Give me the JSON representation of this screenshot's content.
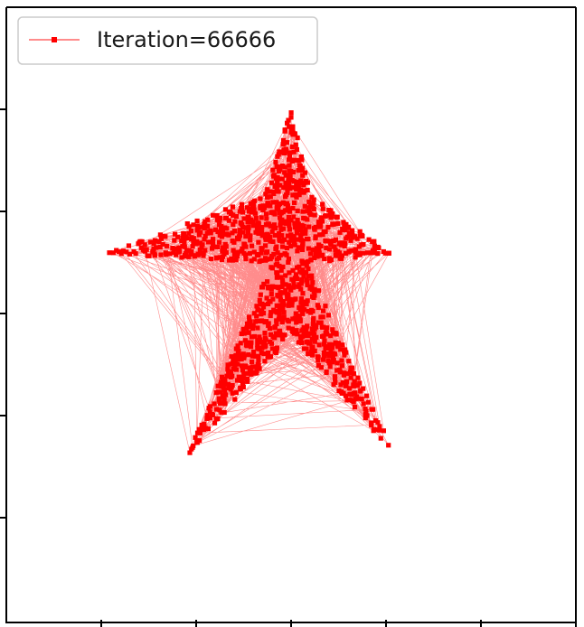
{
  "chart_data": {
    "type": "line",
    "title": "",
    "xlabel": "",
    "ylabel": "",
    "grid": false,
    "legend_position": "top-left",
    "xlim": [
      0,
      6
    ],
    "ylim": [
      0,
      6
    ],
    "x_tick_labels": [],
    "y_tick_labels": [],
    "series": [
      {
        "name": "Iteration=66666",
        "color": "#ff0000",
        "marker": "square-dot",
        "shape": "five-point star of scattered points",
        "star_vertices": [
          [
            3.0,
            5.0
          ],
          [
            3.21,
            4.16
          ],
          [
            4.05,
            3.6
          ],
          [
            3.16,
            3.5
          ],
          [
            4.1,
            1.62
          ],
          [
            3.0,
            2.8
          ],
          [
            1.9,
            1.62
          ],
          [
            2.8,
            3.5
          ],
          [
            1.05,
            3.6
          ],
          [
            2.7,
            4.16
          ]
        ],
        "point_count": 1300
      }
    ]
  }
}
